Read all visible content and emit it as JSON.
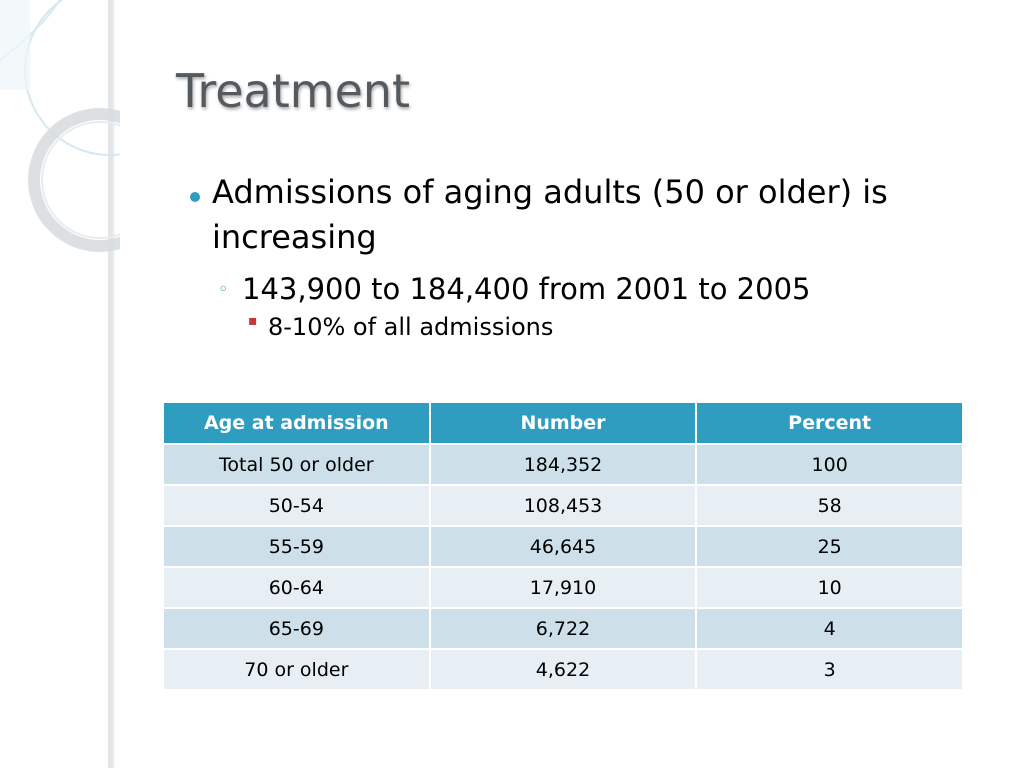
{
  "slide": {
    "title": "Treatment"
  },
  "bullets": {
    "level1": "Admissions of aging adults (50 or older) is increasing",
    "level2": "143,900 to 184,400 from 2001 to 2005",
    "level3": "8-10% of all admissions"
  },
  "table": {
    "headers": [
      "Age at admission",
      "Number",
      "Percent"
    ],
    "rows": [
      [
        "Total 50 or older",
        "184,352",
        "100"
      ],
      [
        "50-54",
        "108,453",
        "58"
      ],
      [
        "55-59",
        "46,645",
        "25"
      ],
      [
        "60-64",
        "17,910",
        "10"
      ],
      [
        "65-69",
        "6,722",
        "4"
      ],
      [
        "70 or older",
        "4,622",
        "3"
      ]
    ]
  },
  "theme": {
    "accent": "#2f9dc0",
    "title_color": "#555a5f",
    "row_odd": "#cde0ea",
    "row_even": "#e7eff5"
  },
  "icons": {
    "level1_bullet": "filled-circle-bullet",
    "level2_bullet": "hollow-circle-bullet",
    "level3_bullet": "small-square-bullet"
  }
}
